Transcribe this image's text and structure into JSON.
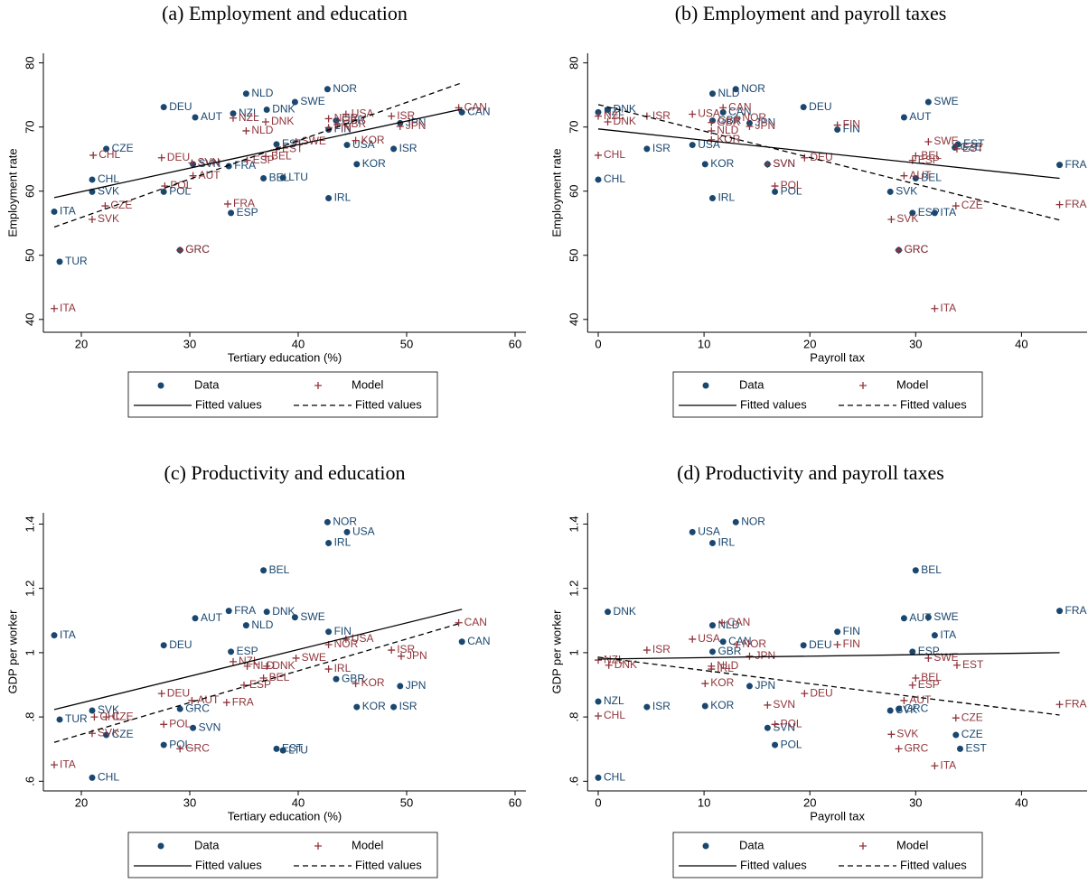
{
  "chart_data": [
    {
      "type": "scatter",
      "title": "(a) Employment and education",
      "xlabel": "Tertiary education (%)",
      "ylabel": "Employment rate",
      "xlim": [
        16.5,
        61
      ],
      "ylim": [
        38,
        81.5
      ],
      "xticks": [
        20,
        30,
        40,
        50,
        60
      ],
      "yticks": [
        40,
        50,
        60,
        70,
        80
      ],
      "series": [
        {
          "name": "Data",
          "type": "scatter",
          "marker": "circle",
          "color": "#1a476f",
          "labels": [
            "NOR",
            "NLD",
            "SWE",
            "DEU",
            "DNK",
            "NZL",
            "AUT",
            "CAN",
            "GBR",
            "JPN",
            "FIN",
            "EST",
            "USA",
            "ISR",
            "CZE",
            "SVN",
            "FRA",
            "KOR",
            "CHL",
            "BEL",
            "LTU",
            "SVK",
            "POL",
            "IRL",
            "ITA",
            "ESP",
            "GRC",
            "TUR"
          ],
          "x": [
            42.7,
            35.2,
            39.7,
            27.6,
            37.1,
            34.0,
            30.5,
            55.1,
            43.5,
            49.4,
            42.8,
            38.0,
            44.5,
            48.8,
            22.3,
            30.3,
            33.6,
            45.4,
            21.0,
            36.8,
            38.6,
            21.0,
            27.6,
            42.8,
            17.5,
            33.8,
            29.1,
            18.0
          ],
          "values": [
            75.9,
            75.2,
            73.9,
            73.1,
            72.7,
            72.1,
            71.5,
            72.3,
            71.0,
            70.6,
            69.6,
            67.3,
            67.2,
            66.6,
            66.6,
            64.2,
            63.9,
            64.2,
            61.8,
            62.0,
            62.1,
            59.9,
            59.9,
            58.9,
            56.8,
            56.6,
            50.8,
            49.0
          ]
        },
        {
          "name": "Model",
          "type": "scatter",
          "marker": "plus",
          "color": "#90353b",
          "labels": [
            "CAN",
            "USA",
            "ISR",
            "NZL",
            "DNK",
            "NOR",
            "GBR",
            "JPN",
            "FIN",
            "NLD",
            "KOR",
            "SWE",
            "EST",
            "BEL",
            "ESP",
            "CHL",
            "DEU",
            "SVN",
            "AUT",
            "POL",
            "CZE",
            "FRA",
            "SVK",
            "GRC",
            "ITA"
          ],
          "x": [
            54.8,
            44.4,
            48.6,
            34.0,
            37.0,
            42.8,
            43.6,
            49.4,
            42.8,
            35.2,
            45.3,
            39.8,
            38.0,
            37.0,
            35.3,
            21.1,
            27.4,
            30.2,
            30.3,
            27.7,
            22.2,
            33.5,
            21.0,
            29.1,
            17.5
          ],
          "values": [
            73.0,
            72.0,
            71.7,
            71.4,
            70.8,
            71.3,
            70.4,
            70.1,
            69.9,
            69.4,
            67.9,
            67.7,
            66.5,
            65.4,
            64.8,
            65.6,
            65.2,
            64.4,
            62.4,
            60.8,
            57.7,
            58.0,
            55.6,
            50.8,
            41.7
          ]
        },
        {
          "name": "Fitted values",
          "type": "line",
          "dash": false,
          "color": "#000000",
          "x": [
            17.5,
            55.1
          ],
          "values": [
            59.0,
            72.8
          ]
        },
        {
          "name": "Fitted values",
          "type": "line",
          "dash": true,
          "color": "#000000",
          "x": [
            17.5,
            55.1
          ],
          "values": [
            54.4,
            76.9
          ]
        }
      ]
    },
    {
      "type": "scatter",
      "title": "(b) Employment and payroll taxes",
      "xlabel": "Payroll tax",
      "ylabel": "Employment rate",
      "xlim": [
        -1,
        46.2
      ],
      "ylim": [
        38,
        81.5
      ],
      "xticks": [
        0,
        10,
        20,
        30,
        40
      ],
      "yticks": [
        40,
        50,
        60,
        70,
        80
      ],
      "series": [
        {
          "name": "Data",
          "type": "scatter",
          "marker": "circle",
          "color": "#1a476f",
          "labels": [
            "DNK",
            "NZL",
            "NOR",
            "NLD",
            "CAN",
            "SWE",
            "DEU",
            "AUT",
            "GBR",
            "JPN",
            "FIN",
            "USA",
            "EST",
            "ISR",
            "CZE",
            "KOR",
            "SVN",
            "FRA",
            "CHL",
            "BEL",
            "POL",
            "SVK",
            "IRL",
            "ESP",
            "ITA",
            "GRC"
          ],
          "x": [
            0.9,
            0.0,
            13.0,
            10.8,
            11.8,
            31.2,
            19.4,
            28.9,
            10.8,
            14.3,
            22.6,
            8.9,
            34.0,
            4.6,
            33.7,
            10.1,
            16.0,
            43.6,
            0.0,
            30.0,
            16.7,
            27.6,
            10.8,
            29.7,
            31.8,
            28.4
          ],
          "values": [
            72.7,
            72.3,
            75.9,
            75.2,
            72.3,
            73.9,
            73.1,
            71.5,
            71.0,
            70.6,
            69.6,
            67.2,
            67.3,
            66.6,
            66.8,
            64.2,
            64.2,
            64.1,
            61.8,
            62.0,
            59.9,
            59.9,
            58.9,
            56.6,
            56.6,
            50.8
          ]
        },
        {
          "name": "Model",
          "type": "scatter",
          "marker": "plus",
          "color": "#90353b",
          "labels": [
            "NZL",
            "DNK",
            "ISR",
            "USA",
            "CAN",
            "NOR",
            "GBR",
            "JPN",
            "FIN",
            "NLD",
            "KOR",
            "SWE",
            "EST",
            "DEU",
            "BEL",
            "ESP",
            "CHL",
            "SVN",
            "AUT",
            "POL",
            "CZE",
            "FRA",
            "SVK",
            "GRC",
            "ITA"
          ],
          "x": [
            0.0,
            0.9,
            4.6,
            8.9,
            11.8,
            13.1,
            10.7,
            14.3,
            22.6,
            10.7,
            10.7,
            31.2,
            33.9,
            19.5,
            30.0,
            29.7,
            0.0,
            16.0,
            28.9,
            16.7,
            33.8,
            43.6,
            27.7,
            28.4,
            31.8
          ],
          "values": [
            71.7,
            70.8,
            71.7,
            72.0,
            73.0,
            71.4,
            70.7,
            70.1,
            70.3,
            69.4,
            68.0,
            67.7,
            66.6,
            65.2,
            65.5,
            64.8,
            65.6,
            64.2,
            62.4,
            60.8,
            57.7,
            57.9,
            55.6,
            50.8,
            41.7
          ]
        },
        {
          "name": "Fitted values",
          "type": "line",
          "dash": false,
          "color": "#000000",
          "x": [
            0,
            43.6
          ],
          "values": [
            69.7,
            62.0
          ]
        },
        {
          "name": "Fitted values",
          "type": "line",
          "dash": true,
          "color": "#000000",
          "x": [
            0,
            43.6
          ],
          "values": [
            73.5,
            55.5
          ]
        }
      ]
    },
    {
      "type": "scatter",
      "title": "(c) Productivity and education",
      "xlabel": "Tertiary education (%)",
      "ylabel": "GDP per worker",
      "xlim": [
        16.5,
        61
      ],
      "ylim": [
        0.57,
        1.435
      ],
      "xticks": [
        20,
        30,
        40,
        50,
        60
      ],
      "yticks": [
        {
          "value": 0.6,
          "label": ".6"
        },
        {
          "value": 0.8,
          "label": ".8"
        },
        1,
        1.2,
        1.4
      ],
      "series": [
        {
          "name": "Data",
          "type": "scatter",
          "marker": "circle",
          "color": "#1a476f",
          "labels": [
            "NOR",
            "USA",
            "IRL",
            "BEL",
            "FRA",
            "DNK",
            "SWE",
            "AUT",
            "NLD",
            "ITA",
            "FIN",
            "CAN",
            "DEU",
            "ESP",
            "GBR",
            "JPN",
            "KOR",
            "ISR",
            "SVK",
            "GRC",
            "TUR",
            "SVN",
            "CZE",
            "POL",
            "EST",
            "LTU",
            "CHL"
          ],
          "x": [
            42.7,
            44.5,
            42.8,
            36.8,
            33.6,
            37.1,
            39.7,
            30.5,
            35.2,
            17.5,
            42.8,
            55.1,
            27.6,
            33.8,
            43.5,
            49.4,
            45.4,
            48.8,
            21.0,
            29.1,
            18.0,
            30.3,
            22.3,
            27.6,
            38.0,
            38.6,
            21.0
          ],
          "values": [
            1.406,
            1.375,
            1.341,
            1.256,
            1.13,
            1.127,
            1.11,
            1.107,
            1.085,
            1.054,
            1.065,
            1.034,
            1.023,
            1.003,
            0.918,
            0.896,
            0.831,
            0.831,
            0.82,
            0.825,
            0.792,
            0.766,
            0.744,
            0.713,
            0.701,
            0.696,
            0.611
          ]
        },
        {
          "name": "Model",
          "type": "scatter",
          "marker": "plus",
          "color": "#90353b",
          "labels": [
            "CAN",
            "USA",
            "NOR",
            "ISR",
            "JPN",
            "SWE",
            "NZL",
            "NLD",
            "DNK",
            "IRL",
            "BEL",
            "ESP",
            "KOR",
            "DEU",
            "AUT",
            "FRA",
            "CHL",
            "CZE",
            "POL",
            "SVK",
            "GRC",
            "ITA"
          ],
          "x": [
            54.8,
            44.4,
            42.8,
            48.6,
            49.5,
            39.8,
            34.0,
            35.3,
            37.1,
            42.8,
            36.8,
            35.0,
            45.3,
            27.4,
            30.2,
            33.4,
            21.2,
            22.3,
            27.6,
            21.0,
            29.1,
            17.5
          ],
          "values": [
            1.093,
            1.042,
            1.025,
            1.008,
            0.989,
            0.983,
            0.972,
            0.958,
            0.958,
            0.949,
            0.921,
            0.899,
            0.904,
            0.873,
            0.851,
            0.845,
            0.8,
            0.8,
            0.777,
            0.749,
            0.701,
            0.651
          ]
        },
        {
          "name": "Fitted values",
          "type": "line",
          "dash": false,
          "color": "#000000",
          "x": [
            17.5,
            55.1
          ],
          "values": [
            0.823,
            1.135
          ]
        },
        {
          "name": "Fitted values",
          "type": "line",
          "dash": true,
          "color": "#000000",
          "x": [
            17.5,
            55.1
          ],
          "values": [
            0.721,
            1.093
          ]
        }
      ]
    },
    {
      "type": "scatter",
      "title": "(d) Productivity and payroll taxes",
      "xlabel": "Payroll tax",
      "ylabel": "GDP per worker",
      "xlim": [
        -1,
        46.2
      ],
      "ylim": [
        0.57,
        1.435
      ],
      "xticks": [
        0,
        10,
        20,
        30,
        40
      ],
      "yticks": [
        {
          "value": 0.6,
          "label": ".6"
        },
        {
          "value": 0.8,
          "label": ".8"
        },
        1,
        1.2,
        1.4
      ],
      "series": [
        {
          "name": "Data",
          "type": "scatter",
          "marker": "circle",
          "color": "#1a476f",
          "labels": [
            "NOR",
            "USA",
            "IRL",
            "BEL",
            "DNK",
            "FRA",
            "AUT",
            "SWE",
            "NLD",
            "FIN",
            "ITA",
            "CAN",
            "DEU",
            "ESP",
            "GBR",
            "JPN",
            "NZL",
            "ISR",
            "KOR",
            "GRC",
            "SVK",
            "SVN",
            "CZE",
            "POL",
            "EST",
            "CHL"
          ],
          "x": [
            13.0,
            8.9,
            10.8,
            30.0,
            0.9,
            43.6,
            28.9,
            31.2,
            10.8,
            22.6,
            31.8,
            11.8,
            19.4,
            29.7,
            10.8,
            14.3,
            0.0,
            4.6,
            10.1,
            28.4,
            27.6,
            16.0,
            33.8,
            16.7,
            34.2,
            0.0
          ],
          "values": [
            1.406,
            1.375,
            1.341,
            1.256,
            1.127,
            1.13,
            1.107,
            1.11,
            1.085,
            1.065,
            1.054,
            1.034,
            1.023,
            1.003,
            1.003,
            0.896,
            0.848,
            0.831,
            0.834,
            0.825,
            0.82,
            0.766,
            0.744,
            0.713,
            0.701,
            0.611
          ]
        },
        {
          "name": "Model",
          "type": "scatter",
          "marker": "plus",
          "color": "#90353b",
          "labels": [
            "CAN",
            "USA",
            "FIN",
            "NOR",
            "ISR",
            "JPN",
            "SWE",
            "NZL",
            "DNK",
            "NLD",
            "IRL",
            "EST",
            "BEL",
            "ESP",
            "KOR",
            "DEU",
            "AUT",
            "SVN",
            "FRA",
            "CHL",
            "CZE",
            "POL",
            "SVK",
            "GRC",
            "ITA"
          ],
          "x": [
            11.7,
            8.9,
            22.6,
            13.1,
            4.6,
            14.3,
            31.2,
            0.0,
            1.0,
            10.7,
            10.7,
            33.9,
            30.0,
            29.7,
            10.1,
            19.5,
            28.9,
            16.0,
            43.6,
            0.0,
            33.8,
            16.7,
            27.7,
            28.4,
            31.8
          ],
          "values": [
            1.093,
            1.042,
            1.025,
            1.025,
            1.008,
            0.989,
            0.983,
            0.977,
            0.961,
            0.958,
            0.949,
            0.961,
            0.921,
            0.899,
            0.904,
            0.873,
            0.851,
            0.837,
            0.839,
            0.803,
            0.797,
            0.777,
            0.746,
            0.701,
            0.648
          ]
        },
        {
          "name": "Fitted values",
          "type": "line",
          "dash": false,
          "color": "#000000",
          "x": [
            0,
            43.6
          ],
          "values": [
            0.98,
            1.0
          ]
        },
        {
          "name": "Fitted values",
          "type": "line",
          "dash": true,
          "color": "#000000",
          "x": [
            0,
            43.6
          ],
          "values": [
            0.986,
            0.806
          ]
        }
      ]
    }
  ]
}
